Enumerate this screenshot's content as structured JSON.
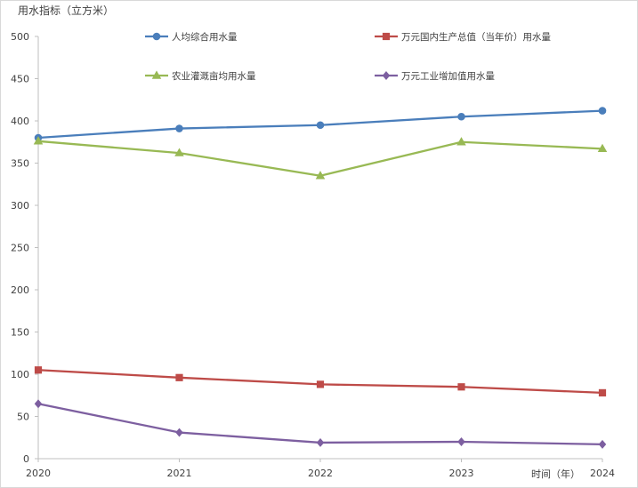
{
  "chart_data": {
    "type": "line",
    "ylabel": "用水指标（立方米）",
    "xlabel": "时间（年）",
    "x": [
      "2020",
      "2021",
      "2022",
      "2023",
      "2024"
    ],
    "ylim": [
      0,
      500
    ],
    "yticks": [
      0,
      50,
      100,
      150,
      200,
      250,
      300,
      350,
      400,
      450,
      500
    ],
    "grid": false,
    "legend_position": "top",
    "series": [
      {
        "name": "人均综合用水量",
        "color": "#4a7ebb",
        "marker": "circle",
        "values": [
          380,
          391,
          395,
          405,
          412
        ]
      },
      {
        "name": "万元国内生产总值（当年价）用水量",
        "color": "#be4b48",
        "marker": "square",
        "values": [
          105,
          96,
          88,
          85,
          78
        ]
      },
      {
        "name": "农业灌溉亩均用水量",
        "color": "#98b954",
        "marker": "triangle",
        "values": [
          376,
          362,
          335,
          375,
          367
        ]
      },
      {
        "name": "万元工业增加值用水量",
        "color": "#7d5fa0",
        "marker": "diamond",
        "values": [
          65,
          31,
          19,
          20,
          17
        ]
      }
    ]
  }
}
